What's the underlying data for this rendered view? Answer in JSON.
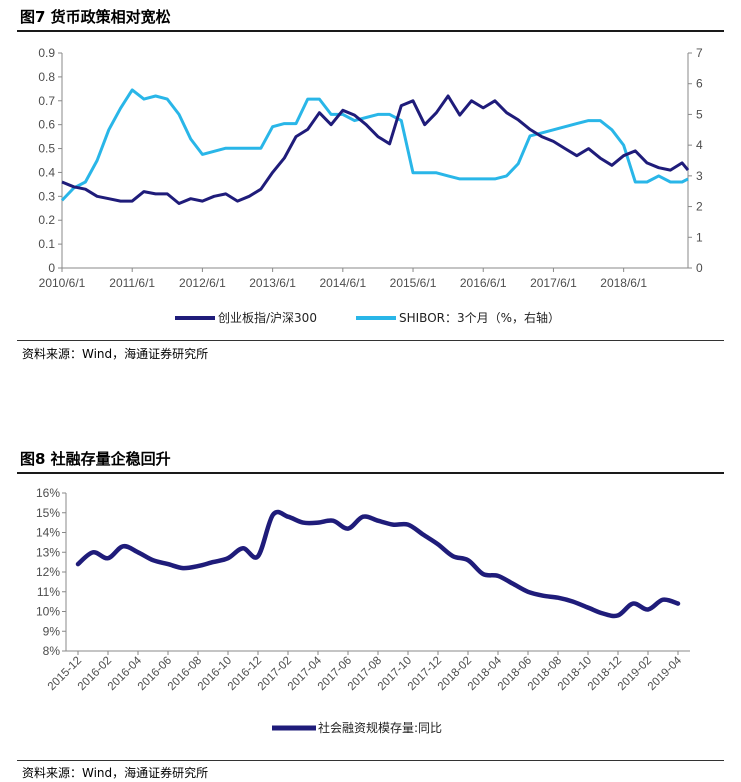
{
  "fig7": {
    "title": "图7  货币政策相对宽松",
    "source": "资料来源：Wind，海通证券研究所"
  },
  "fig8": {
    "title": "图8  社融存量企稳回升",
    "source": "资料来源：Wind，海通证券研究所"
  },
  "chart_data": [
    {
      "type": "line",
      "title": "货币政策相对宽松",
      "x_tick_labels": [
        "2010/6/1",
        "2011/6/1",
        "2012/6/1",
        "2013/6/1",
        "2014/6/1",
        "2015/6/1",
        "2016/6/1",
        "2017/6/1",
        "2018/6/1"
      ],
      "y_left": {
        "ticks": [
          "0",
          "0.1",
          "0.2",
          "0.3",
          "0.4",
          "0.5",
          "0.6",
          "0.7",
          "0.8",
          "0.9"
        ],
        "ylim": [
          0,
          0.9
        ]
      },
      "y_right": {
        "ticks": [
          "0",
          "1",
          "2",
          "3",
          "4",
          "5",
          "6",
          "7"
        ],
        "ylim": [
          0,
          7
        ]
      },
      "x_range": [
        "2010/6/1",
        "2019/5/1"
      ],
      "grid": false,
      "legend_position": "bottom",
      "series": [
        {
          "name": "创业板指/沪深300",
          "axis": "left",
          "color": "#1f1c7a",
          "x": [
            "2010/6/1",
            "2010/8/1",
            "2010/10/1",
            "2010/12/1",
            "2011/2/1",
            "2011/4/1",
            "2011/6/1",
            "2011/8/1",
            "2011/10/1",
            "2011/12/1",
            "2012/2/1",
            "2012/4/1",
            "2012/6/1",
            "2012/8/1",
            "2012/10/1",
            "2012/12/1",
            "2013/2/1",
            "2013/4/1",
            "2013/6/1",
            "2013/8/1",
            "2013/10/1",
            "2013/12/1",
            "2014/2/1",
            "2014/4/1",
            "2014/6/1",
            "2014/8/1",
            "2014/10/1",
            "2014/12/1",
            "2015/2/1",
            "2015/4/1",
            "2015/6/1",
            "2015/8/1",
            "2015/10/1",
            "2015/12/1",
            "2016/2/1",
            "2016/4/1",
            "2016/6/1",
            "2016/8/1",
            "2016/10/1",
            "2016/12/1",
            "2017/2/1",
            "2017/4/1",
            "2017/6/1",
            "2017/8/1",
            "2017/10/1",
            "2017/12/1",
            "2018/2/1",
            "2018/4/1",
            "2018/6/1",
            "2018/8/1",
            "2018/10/1",
            "2018/12/1",
            "2019/2/1",
            "2019/4/1",
            "2019/5/1"
          ],
          "y": [
            0.36,
            0.34,
            0.33,
            0.3,
            0.29,
            0.28,
            0.28,
            0.32,
            0.31,
            0.31,
            0.27,
            0.29,
            0.28,
            0.3,
            0.31,
            0.28,
            0.3,
            0.33,
            0.4,
            0.46,
            0.55,
            0.58,
            0.65,
            0.6,
            0.66,
            0.64,
            0.6,
            0.55,
            0.52,
            0.68,
            0.7,
            0.6,
            0.65,
            0.72,
            0.64,
            0.7,
            0.67,
            0.7,
            0.65,
            0.62,
            0.58,
            0.55,
            0.53,
            0.5,
            0.47,
            0.5,
            0.46,
            0.43,
            0.47,
            0.49,
            0.44,
            0.42,
            0.41,
            0.44,
            0.41
          ]
        },
        {
          "name": "SHIBOR：3个月（%，右轴）",
          "axis": "right",
          "color": "#29b6e8",
          "x": [
            "2010/6/1",
            "2010/8/1",
            "2010/10/1",
            "2010/12/1",
            "2011/2/1",
            "2011/4/1",
            "2011/6/1",
            "2011/8/1",
            "2011/10/1",
            "2011/12/1",
            "2012/2/1",
            "2012/4/1",
            "2012/6/1",
            "2012/8/1",
            "2012/10/1",
            "2012/12/1",
            "2013/2/1",
            "2013/4/1",
            "2013/6/1",
            "2013/8/1",
            "2013/10/1",
            "2013/12/1",
            "2014/2/1",
            "2014/4/1",
            "2014/6/1",
            "2014/8/1",
            "2014/10/1",
            "2014/12/1",
            "2015/2/1",
            "2015/4/1",
            "2015/6/1",
            "2015/8/1",
            "2015/10/1",
            "2015/12/1",
            "2016/2/1",
            "2016/4/1",
            "2016/6/1",
            "2016/8/1",
            "2016/10/1",
            "2016/12/1",
            "2017/2/1",
            "2017/4/1",
            "2017/6/1",
            "2017/8/1",
            "2017/10/1",
            "2017/12/1",
            "2018/2/1",
            "2018/4/1",
            "2018/6/1",
            "2018/8/1",
            "2018/10/1",
            "2018/12/1",
            "2019/2/1",
            "2019/4/1",
            "2019/5/1"
          ],
          "y": [
            2.2,
            2.6,
            2.8,
            3.5,
            4.5,
            5.2,
            5.8,
            5.5,
            5.6,
            5.5,
            5.0,
            4.2,
            3.7,
            3.8,
            3.9,
            3.9,
            3.9,
            3.9,
            4.6,
            4.7,
            4.7,
            5.5,
            5.5,
            5.0,
            5.0,
            4.8,
            4.9,
            5.0,
            5.0,
            4.8,
            3.1,
            3.1,
            3.1,
            3.0,
            2.9,
            2.9,
            2.9,
            2.9,
            3.0,
            3.4,
            4.3,
            4.4,
            4.5,
            4.6,
            4.7,
            4.8,
            4.8,
            4.5,
            4.0,
            2.8,
            2.8,
            3.0,
            2.8,
            2.8,
            2.9
          ]
        }
      ]
    },
    {
      "type": "line",
      "title": "社融存量企稳回升",
      "categories": [
        "2015-12",
        "2016-01",
        "2016-02",
        "2016-03",
        "2016-04",
        "2016-05",
        "2016-06",
        "2016-07",
        "2016-08",
        "2016-09",
        "2016-10",
        "2016-11",
        "2016-12",
        "2017-01",
        "2017-02",
        "2017-03",
        "2017-04",
        "2017-05",
        "2017-06",
        "2017-07",
        "2017-08",
        "2017-09",
        "2017-10",
        "2017-11",
        "2017-12",
        "2018-01",
        "2018-02",
        "2018-03",
        "2018-04",
        "2018-05",
        "2018-06",
        "2018-07",
        "2018-08",
        "2018-09",
        "2018-10",
        "2018-11",
        "2018-12",
        "2019-01",
        "2019-02",
        "2019-03",
        "2019-04"
      ],
      "x_tick_labels": [
        "2015-12",
        "2016-02",
        "2016-04",
        "2016-06",
        "2016-08",
        "2016-10",
        "2016-12",
        "2017-02",
        "2017-04",
        "2017-06",
        "2017-08",
        "2017-10",
        "2017-12",
        "2018-02",
        "2018-04",
        "2018-06",
        "2018-08",
        "2018-10",
        "2018-12",
        "2019-02",
        "2019-04"
      ],
      "y_tick_labels": [
        "8%",
        "9%",
        "10%",
        "11%",
        "12%",
        "13%",
        "14%",
        "15%",
        "16%"
      ],
      "ylim": [
        8,
        16
      ],
      "grid": false,
      "legend_position": "bottom",
      "series": [
        {
          "name": "社会融资规模存量:同比",
          "color": "#1f1c7a",
          "values": [
            12.4,
            13.0,
            12.7,
            13.3,
            13.0,
            12.6,
            12.4,
            12.2,
            12.3,
            12.5,
            12.7,
            13.2,
            12.8,
            14.9,
            14.8,
            14.5,
            14.5,
            14.6,
            14.2,
            14.8,
            14.6,
            14.4,
            14.4,
            13.9,
            13.4,
            12.8,
            12.6,
            11.9,
            11.8,
            11.4,
            11.0,
            10.8,
            10.7,
            10.5,
            10.2,
            9.9,
            9.8,
            10.4,
            10.1,
            10.6,
            10.4
          ]
        }
      ]
    }
  ]
}
